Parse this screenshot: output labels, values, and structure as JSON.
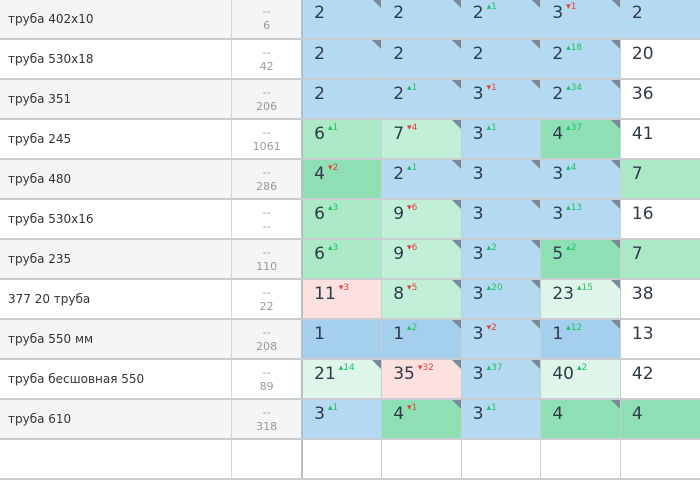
{
  "colors": {
    "blue": "#b4d9f1",
    "blue_dark": "#a4d0ee",
    "green_strong": "#8ee0b4",
    "green": "#abe9c6",
    "green_light": "#c2efd7",
    "green_pale": "#dff5e9",
    "pink": "#fde0e0",
    "white": "#ffffff"
  },
  "rows": [
    {
      "name": "труба 402x10",
      "freq_top": "--",
      "freq": "6",
      "cells": [
        {
          "v": "2",
          "bg": "blue",
          "corner": true
        },
        {
          "v": "2",
          "bg": "blue",
          "corner": true
        },
        {
          "v": "2",
          "d": "1",
          "dir": "up",
          "bg": "blue",
          "corner": true
        },
        {
          "v": "3",
          "d": "1",
          "dir": "dn",
          "bg": "blue",
          "corner": true
        },
        {
          "v": "2",
          "bg": "blue"
        }
      ]
    },
    {
      "name": "труба 530x18",
      "freq_top": "--",
      "freq": "42",
      "cells": [
        {
          "v": "2",
          "bg": "blue",
          "corner": true
        },
        {
          "v": "2",
          "bg": "blue",
          "corner": true
        },
        {
          "v": "2",
          "bg": "blue",
          "corner": true
        },
        {
          "v": "2",
          "d": "18",
          "dir": "up",
          "bg": "blue",
          "corner": true
        },
        {
          "v": "20",
          "bg": "white"
        }
      ]
    },
    {
      "name": "труба 351",
      "freq_top": "--",
      "freq": "206",
      "cells": [
        {
          "v": "2",
          "bg": "blue"
        },
        {
          "v": "2",
          "d": "1",
          "dir": "up",
          "bg": "blue",
          "corner": true
        },
        {
          "v": "3",
          "d": "1",
          "dir": "dn",
          "bg": "blue",
          "corner": true
        },
        {
          "v": "2",
          "d": "34",
          "dir": "up",
          "bg": "blue",
          "corner": true
        },
        {
          "v": "36",
          "bg": "white"
        }
      ]
    },
    {
      "name": "труба 245",
      "freq_top": "--",
      "freq": "1061",
      "cells": [
        {
          "v": "6",
          "d": "1",
          "dir": "up",
          "bg": "green"
        },
        {
          "v": "7",
          "d": "4",
          "dir": "dn",
          "bg": "green_light",
          "corner": true
        },
        {
          "v": "3",
          "d": "1",
          "dir": "up",
          "bg": "blue"
        },
        {
          "v": "4",
          "d": "37",
          "dir": "up",
          "bg": "green_strong",
          "corner": true
        },
        {
          "v": "41",
          "bg": "white"
        }
      ]
    },
    {
      "name": "труба 480",
      "freq_top": "--",
      "freq": "286",
      "cells": [
        {
          "v": "4",
          "d": "2",
          "dir": "dn",
          "bg": "green_strong"
        },
        {
          "v": "2",
          "d": "1",
          "dir": "up",
          "bg": "blue",
          "corner": true
        },
        {
          "v": "3",
          "bg": "blue",
          "corner": true
        },
        {
          "v": "3",
          "d": "4",
          "dir": "up",
          "bg": "blue",
          "corner": true
        },
        {
          "v": "7",
          "bg": "green"
        }
      ]
    },
    {
      "name": "труба 530x16",
      "freq_top": "--",
      "freq": "--",
      "cells": [
        {
          "v": "6",
          "d": "3",
          "dir": "up",
          "bg": "green"
        },
        {
          "v": "9",
          "d": "6",
          "dir": "dn",
          "bg": "green_light",
          "corner": true
        },
        {
          "v": "3",
          "bg": "blue",
          "corner": true
        },
        {
          "v": "3",
          "d": "13",
          "dir": "up",
          "bg": "blue",
          "corner": true
        },
        {
          "v": "16",
          "bg": "white"
        }
      ]
    },
    {
      "name": "труба 235",
      "freq_top": "--",
      "freq": "110",
      "cells": [
        {
          "v": "6",
          "d": "3",
          "dir": "up",
          "bg": "green"
        },
        {
          "v": "9",
          "d": "6",
          "dir": "dn",
          "bg": "green_light",
          "corner": true
        },
        {
          "v": "3",
          "d": "2",
          "dir": "up",
          "bg": "blue",
          "corner": true
        },
        {
          "v": "5",
          "d": "2",
          "dir": "up",
          "bg": "green_strong",
          "corner": true
        },
        {
          "v": "7",
          "bg": "green"
        }
      ]
    },
    {
      "name": "377 20 труба",
      "freq_top": "--",
      "freq": "22",
      "cells": [
        {
          "v": "11",
          "d": "3",
          "dir": "dn",
          "bg": "pink"
        },
        {
          "v": "8",
          "d": "5",
          "dir": "dn",
          "bg": "green_light",
          "corner": true
        },
        {
          "v": "3",
          "d": "20",
          "dir": "up",
          "bg": "blue",
          "corner": true
        },
        {
          "v": "23",
          "d": "15",
          "dir": "up",
          "bg": "green_pale",
          "corner": true
        },
        {
          "v": "38",
          "bg": "white"
        }
      ]
    },
    {
      "name": "труба 550 мм",
      "freq_top": "--",
      "freq": "208",
      "cells": [
        {
          "v": "1",
          "bg": "blue_dark"
        },
        {
          "v": "1",
          "d": "2",
          "dir": "up",
          "bg": "blue_dark",
          "corner": true
        },
        {
          "v": "3",
          "d": "2",
          "dir": "dn",
          "bg": "blue",
          "corner": true
        },
        {
          "v": "1",
          "d": "12",
          "dir": "up",
          "bg": "blue_dark",
          "corner": true
        },
        {
          "v": "13",
          "bg": "white"
        }
      ]
    },
    {
      "name": "труба бесшовная 550",
      "freq_top": "--",
      "freq": "89",
      "cells": [
        {
          "v": "21",
          "d": "14",
          "dir": "up",
          "bg": "green_pale",
          "corner": true
        },
        {
          "v": "35",
          "d": "32",
          "dir": "dn",
          "bg": "pink",
          "corner": true
        },
        {
          "v": "3",
          "d": "37",
          "dir": "up",
          "bg": "blue",
          "corner": true
        },
        {
          "v": "40",
          "d": "2",
          "dir": "up",
          "bg": "green_pale"
        },
        {
          "v": "42",
          "bg": "white"
        }
      ]
    },
    {
      "name": "труба 610",
      "freq_top": "--",
      "freq": "318",
      "cells": [
        {
          "v": "3",
          "d": "1",
          "dir": "up",
          "bg": "blue"
        },
        {
          "v": "4",
          "d": "1",
          "dir": "dn",
          "bg": "green_strong",
          "corner": true
        },
        {
          "v": "3",
          "d": "1",
          "dir": "up",
          "bg": "blue"
        },
        {
          "v": "4",
          "bg": "green_strong",
          "corner": true
        },
        {
          "v": "4",
          "bg": "green_strong"
        }
      ]
    }
  ]
}
